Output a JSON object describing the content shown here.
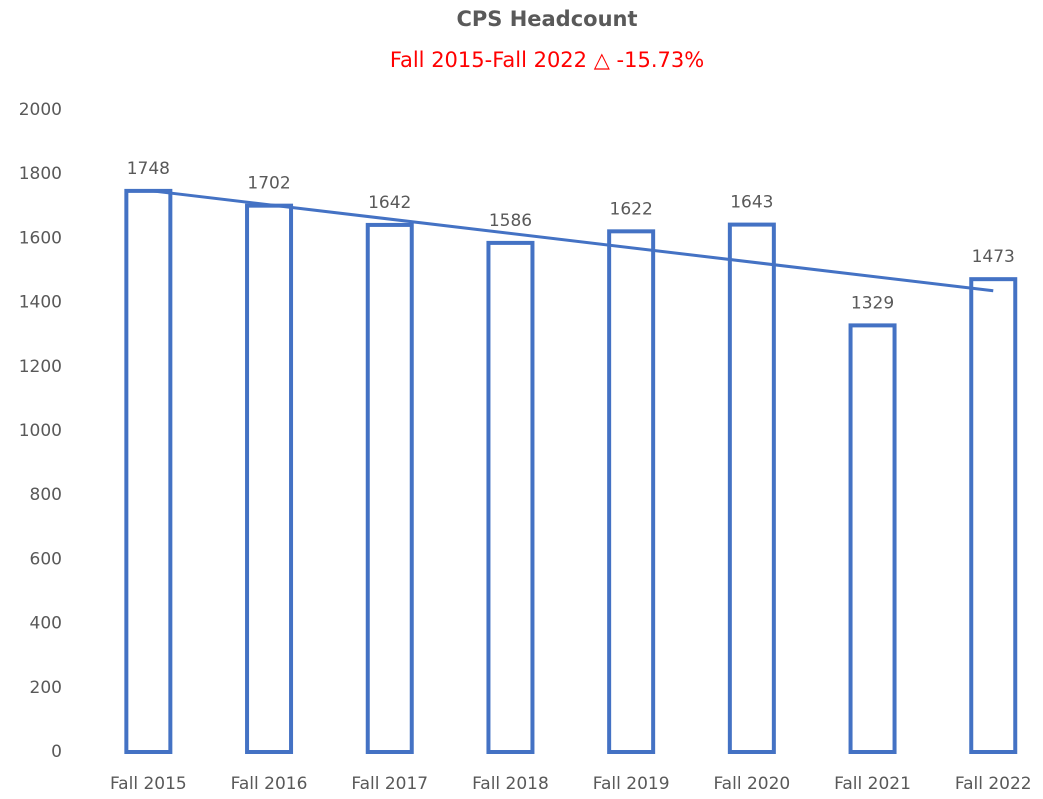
{
  "chart_data": {
    "type": "bar",
    "title": "CPS Headcount",
    "subtitle": "Fall 2015-Fall 2022 △ -15.73%",
    "categories": [
      "Fall 2015",
      "Fall 2016",
      "Fall 2017",
      "Fall 2018",
      "Fall 2019",
      "Fall 2020",
      "Fall 2021",
      "Fall 2022"
    ],
    "values": [
      1748,
      1702,
      1642,
      1586,
      1622,
      1643,
      1329,
      1473
    ],
    "color": "#4472c4",
    "trendline": "linear",
    "ylim": [
      0,
      2000
    ],
    "yticks": [
      0,
      200,
      400,
      600,
      800,
      1000,
      1200,
      1400,
      1600,
      1800,
      2000
    ],
    "grid": false
  }
}
